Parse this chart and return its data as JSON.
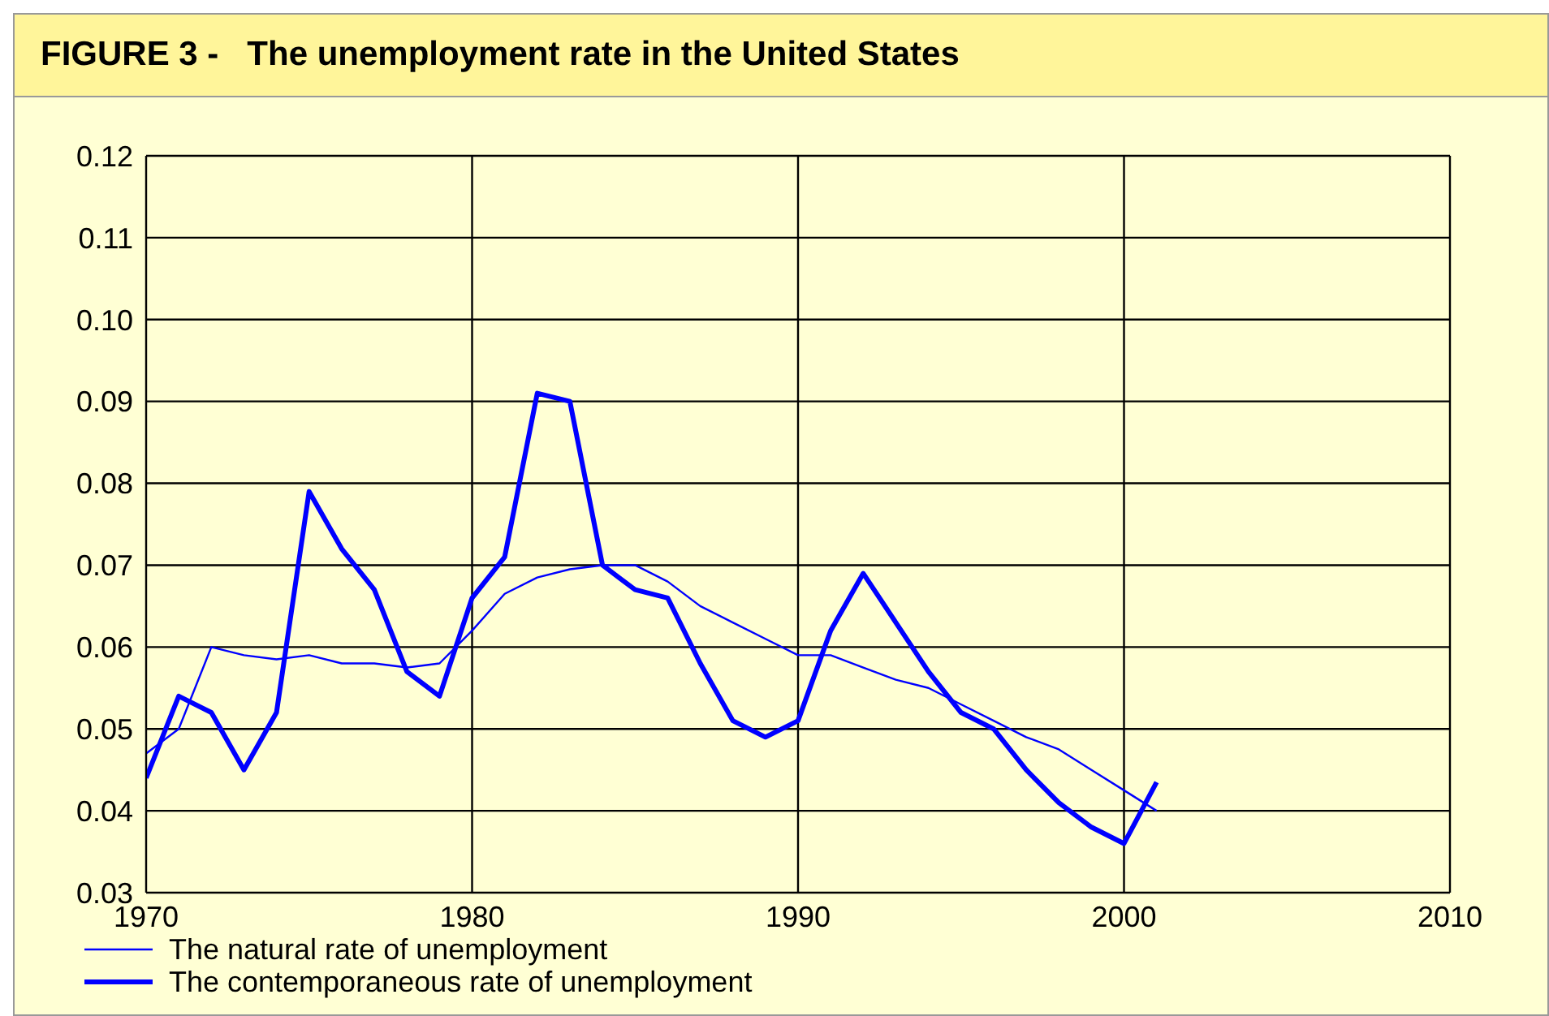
{
  "chart_data": {
    "type": "line",
    "title": "FIGURE 3 -   The unemployment rate in the United States",
    "x": [
      1970,
      1971,
      1972,
      1973,
      1974,
      1975,
      1976,
      1977,
      1978,
      1979,
      1980,
      1981,
      1982,
      1983,
      1984,
      1985,
      1986,
      1987,
      1988,
      1989,
      1990,
      1991,
      1992,
      1993,
      1994,
      1995,
      1996,
      1997,
      1998,
      1999,
      2000,
      2001
    ],
    "series": [
      {
        "name": "The natural rate of unemployment",
        "color": "#0000ff",
        "values": [
          0.047,
          0.05,
          0.06,
          0.059,
          0.0585,
          0.059,
          0.058,
          0.058,
          0.0575,
          0.058,
          0.062,
          0.0665,
          0.0685,
          0.0695,
          0.07,
          0.07,
          0.068,
          0.065,
          0.063,
          0.061,
          0.059,
          0.059,
          0.0575,
          0.056,
          0.055,
          0.053,
          0.051,
          0.049,
          0.0475,
          0.045,
          0.0425,
          0.04
        ]
      },
      {
        "name": "The contemporaneous rate of unemployment",
        "color": "#0000ff",
        "values": [
          0.044,
          0.054,
          0.052,
          0.045,
          0.052,
          0.079,
          0.072,
          0.067,
          0.057,
          0.054,
          0.066,
          0.071,
          0.091,
          0.09,
          0.07,
          0.067,
          0.066,
          0.058,
          0.051,
          0.049,
          0.051,
          0.062,
          0.069,
          0.063,
          0.057,
          0.052,
          0.05,
          0.045,
          0.041,
          0.038,
          0.036,
          0.0435
        ]
      }
    ],
    "xlim": [
      1970,
      2010
    ],
    "xticks": [
      1970,
      1980,
      1990,
      2000,
      2010
    ],
    "ylim": [
      0.03,
      0.12
    ],
    "yticks": [
      0.03,
      0.04,
      0.05,
      0.06,
      0.07,
      0.08,
      0.09,
      {
        "value": 0.1,
        "label": "0.10"
      },
      0.11,
      0.12
    ],
    "grid": true,
    "legend": "bottom left",
    "marker": "none",
    "line_style": "solid"
  }
}
